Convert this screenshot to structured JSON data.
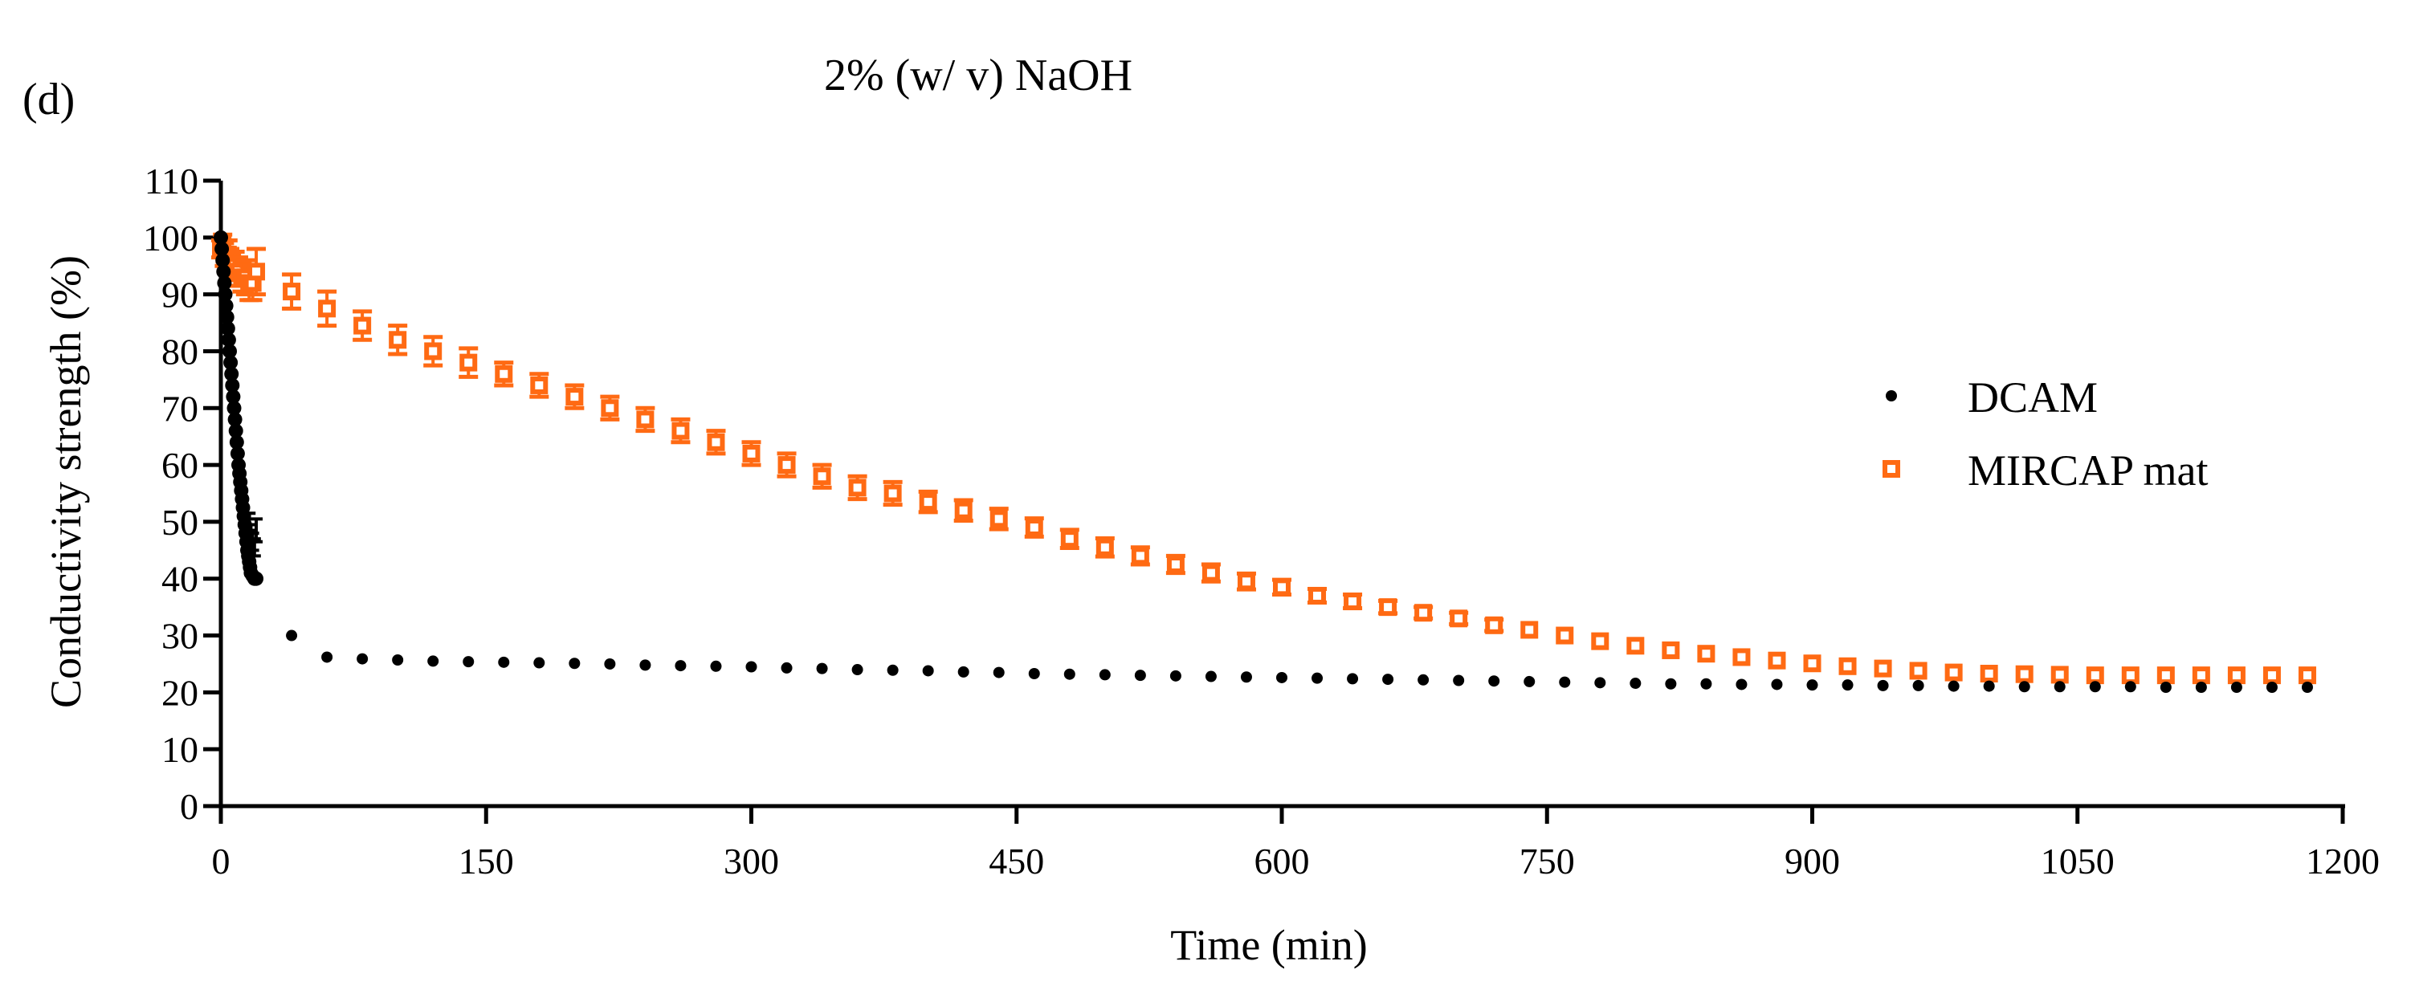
{
  "chart_data": {
    "type": "scatter",
    "panel_label": "(d)",
    "title": "2% (w/ v) NaOH",
    "xlabel": "Time (min)",
    "ylabel": "Conductivity strength (%)",
    "xlim": [
      0,
      1200
    ],
    "ylim": [
      0,
      110
    ],
    "xticks": [
      0,
      150,
      300,
      450,
      600,
      750,
      900,
      1050,
      1200
    ],
    "yticks": [
      0,
      10,
      20,
      30,
      40,
      50,
      60,
      70,
      80,
      90,
      100,
      110
    ],
    "grid": false,
    "legend_position": "right",
    "series": [
      {
        "name": "DCAM",
        "marker": "filled-circle",
        "color": "#000000",
        "points": [
          [
            0,
            100
          ],
          [
            0.5,
            98
          ],
          [
            1,
            96
          ],
          [
            1.5,
            94
          ],
          [
            2,
            92
          ],
          [
            2.5,
            90
          ],
          [
            3,
            88
          ],
          [
            3.5,
            86
          ],
          [
            4,
            84
          ],
          [
            4.5,
            82
          ],
          [
            5,
            80
          ],
          [
            5.5,
            78
          ],
          [
            6,
            76
          ],
          [
            6.5,
            74
          ],
          [
            7,
            72
          ],
          [
            7.5,
            70
          ],
          [
            8,
            68
          ],
          [
            8.5,
            66
          ],
          [
            9,
            64
          ],
          [
            9.5,
            62
          ],
          [
            10,
            60
          ],
          [
            10.5,
            58.5
          ],
          [
            11,
            57
          ],
          [
            11.5,
            55.5
          ],
          [
            12,
            54
          ],
          [
            12.5,
            52.5
          ],
          [
            13,
            51
          ],
          [
            13.5,
            49.5
          ],
          [
            14,
            48
          ],
          [
            14.5,
            46.5
          ],
          [
            15,
            45
          ],
          [
            15.5,
            44
          ],
          [
            16,
            43
          ],
          [
            16.5,
            42
          ],
          [
            17,
            41
          ],
          [
            18,
            40.5
          ],
          [
            19,
            40
          ],
          [
            20,
            40
          ],
          [
            40,
            30
          ],
          [
            60,
            26.2
          ],
          [
            80,
            25.9
          ],
          [
            100,
            25.7
          ],
          [
            120,
            25.5
          ],
          [
            140,
            25.4
          ],
          [
            160,
            25.3
          ],
          [
            180,
            25.2
          ],
          [
            200,
            25.1
          ],
          [
            220,
            25.0
          ],
          [
            240,
            24.8
          ],
          [
            260,
            24.7
          ],
          [
            280,
            24.6
          ],
          [
            300,
            24.5
          ],
          [
            320,
            24.3
          ],
          [
            340,
            24.2
          ],
          [
            360,
            24.0
          ],
          [
            380,
            23.9
          ],
          [
            400,
            23.8
          ],
          [
            420,
            23.6
          ],
          [
            440,
            23.5
          ],
          [
            460,
            23.3
          ],
          [
            480,
            23.2
          ],
          [
            500,
            23.1
          ],
          [
            520,
            23.0
          ],
          [
            540,
            22.9
          ],
          [
            560,
            22.8
          ],
          [
            580,
            22.7
          ],
          [
            600,
            22.6
          ],
          [
            620,
            22.5
          ],
          [
            640,
            22.4
          ],
          [
            660,
            22.3
          ],
          [
            680,
            22.2
          ],
          [
            700,
            22.1
          ],
          [
            720,
            22.0
          ],
          [
            740,
            21.9
          ],
          [
            760,
            21.8
          ],
          [
            780,
            21.7
          ],
          [
            800,
            21.6
          ],
          [
            820,
            21.5
          ],
          [
            840,
            21.5
          ],
          [
            860,
            21.4
          ],
          [
            880,
            21.4
          ],
          [
            900,
            21.3
          ],
          [
            920,
            21.3
          ],
          [
            940,
            21.2
          ],
          [
            960,
            21.2
          ],
          [
            980,
            21.1
          ],
          [
            1000,
            21.1
          ],
          [
            1020,
            21.0
          ],
          [
            1040,
            21.0
          ],
          [
            1060,
            21.0
          ],
          [
            1080,
            21.0
          ],
          [
            1100,
            20.9
          ],
          [
            1120,
            20.9
          ],
          [
            1140,
            20.9
          ],
          [
            1160,
            20.9
          ],
          [
            1180,
            20.9
          ]
        ],
        "error_points": [
          [
            16,
            50,
            1.5
          ],
          [
            17,
            48,
            1.5
          ],
          [
            18,
            46.5,
            1.5
          ],
          [
            19,
            45.5,
            1.5
          ],
          [
            20,
            48.5,
            2.0
          ]
        ]
      },
      {
        "name": "MIRCAP mat",
        "marker": "open-square",
        "color": "#ff6a13",
        "points": [
          [
            0,
            98,
            1.5
          ],
          [
            1,
            99,
            1.5
          ],
          [
            2,
            97,
            2.0
          ],
          [
            3,
            96,
            2.0
          ],
          [
            4,
            97,
            2.5
          ],
          [
            5,
            96,
            2.0
          ],
          [
            6,
            95,
            2.0
          ],
          [
            8,
            95,
            2.5
          ],
          [
            10,
            94,
            2.5
          ],
          [
            12,
            93,
            2.5
          ],
          [
            14,
            93,
            3.0
          ],
          [
            16,
            92,
            3.0
          ],
          [
            18,
            92,
            3.0
          ],
          [
            20,
            94,
            4.0
          ],
          [
            40,
            90.5,
            3.0
          ],
          [
            60,
            87.5,
            3.0
          ],
          [
            80,
            84.5,
            2.5
          ],
          [
            100,
            82.0,
            2.5
          ],
          [
            120,
            80.0,
            2.5
          ],
          [
            140,
            78.0,
            2.5
          ],
          [
            160,
            76.0,
            2.0
          ],
          [
            180,
            74.0,
            2.0
          ],
          [
            200,
            72.0,
            2.0
          ],
          [
            220,
            70.0,
            2.0
          ],
          [
            240,
            68.0,
            2.0
          ],
          [
            260,
            66.0,
            2.0
          ],
          [
            280,
            64.0,
            2.0
          ],
          [
            300,
            62.0,
            2.0
          ],
          [
            320,
            60.0,
            2.0
          ],
          [
            340,
            58.0,
            2.0
          ],
          [
            360,
            56.0,
            2.0
          ],
          [
            380,
            55.0,
            2.0
          ],
          [
            400,
            53.5,
            1.8
          ],
          [
            420,
            52.0,
            1.8
          ],
          [
            440,
            50.5,
            1.8
          ],
          [
            460,
            49.0,
            1.6
          ],
          [
            480,
            47.0,
            1.6
          ],
          [
            500,
            45.5,
            1.6
          ],
          [
            520,
            44.0,
            1.5
          ],
          [
            540,
            42.5,
            1.5
          ],
          [
            560,
            41.0,
            1.5
          ],
          [
            580,
            39.5,
            1.4
          ],
          [
            600,
            38.5,
            1.3
          ],
          [
            620,
            37.0,
            1.2
          ],
          [
            640,
            36.0,
            1.2
          ],
          [
            660,
            35.0,
            1.1
          ],
          [
            680,
            34.0,
            1.0
          ],
          [
            700,
            33.0,
            1.0
          ],
          [
            720,
            31.8,
            1.0
          ],
          [
            740,
            31.0,
            0
          ],
          [
            760,
            30.0,
            0
          ],
          [
            780,
            29.0,
            0
          ],
          [
            800,
            28.2,
            0
          ],
          [
            820,
            27.4,
            0
          ],
          [
            840,
            26.8,
            0
          ],
          [
            860,
            26.2,
            0
          ],
          [
            880,
            25.6,
            0
          ],
          [
            900,
            25.1,
            0
          ],
          [
            920,
            24.6,
            0
          ],
          [
            940,
            24.2,
            0
          ],
          [
            960,
            23.8,
            0
          ],
          [
            980,
            23.5,
            0
          ],
          [
            1000,
            23.3,
            0
          ],
          [
            1020,
            23.2,
            0
          ],
          [
            1040,
            23.1,
            0
          ],
          [
            1060,
            23.0,
            0
          ],
          [
            1080,
            23.0,
            0
          ],
          [
            1100,
            23.0,
            0
          ],
          [
            1120,
            23.0,
            0
          ],
          [
            1140,
            23.0,
            0
          ],
          [
            1160,
            23.0,
            0
          ],
          [
            1180,
            23.0,
            0
          ]
        ]
      }
    ]
  }
}
